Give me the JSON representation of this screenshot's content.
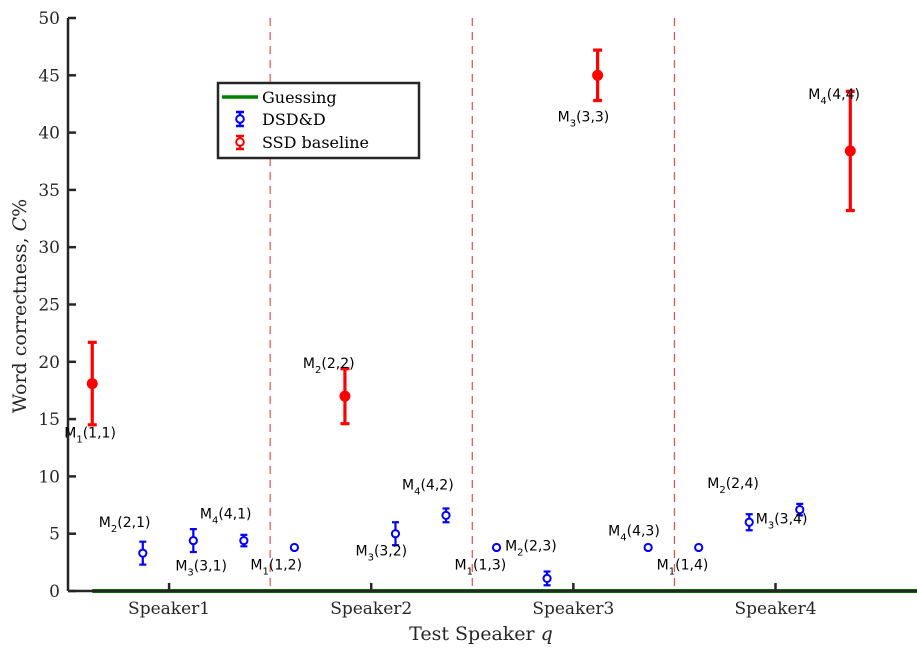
{
  "chart_data": {
    "type": "scatter",
    "xlabel_prefix": "Test Speaker",
    "xlabel_var": "q",
    "ylabel_prefix": "Word correctness,",
    "ylabel_var": "C",
    "ylabel_unit": "%",
    "ylim": [
      0,
      50
    ],
    "yticks": [
      0,
      5,
      10,
      15,
      20,
      25,
      30,
      35,
      40,
      45,
      50
    ],
    "categories": [
      "Speaker1",
      "Speaker2",
      "Speaker3",
      "Speaker4"
    ],
    "legend": {
      "position": "upper-left",
      "entries": [
        {
          "label": "Guessing",
          "color": "#008000",
          "marker": "line"
        },
        {
          "label": "DSD&D",
          "color": "#0000ff",
          "marker": "errorbar-open"
        },
        {
          "label": "SSD baseline",
          "color": "#ff0000",
          "marker": "errorbar-filled"
        }
      ]
    },
    "guessing": {
      "name": "Guessing",
      "color": "#008000",
      "value": 0
    },
    "points": [
      {
        "series": "SSD baseline",
        "x": 0.62,
        "y": 18.1,
        "err": 3.6,
        "label_main": "M",
        "label_sub": "1",
        "label_tail": "(1,1)"
      },
      {
        "series": "DSD&D",
        "x": 0.87,
        "y": 3.3,
        "err": 1.0,
        "label_main": "M",
        "label_sub": "2",
        "label_tail": "(2,1)"
      },
      {
        "series": "DSD&D",
        "x": 1.12,
        "y": 4.4,
        "err": 1.0,
        "label_main": "M",
        "label_sub": "3",
        "label_tail": "(3,1)"
      },
      {
        "series": "DSD&D",
        "x": 1.37,
        "y": 4.4,
        "err": 0.5,
        "label_main": "M",
        "label_sub": "4",
        "label_tail": "(4,1)"
      },
      {
        "series": "DSD&D",
        "x": 1.62,
        "y": 3.8,
        "err": 0.15,
        "label_main": "M",
        "label_sub": "1",
        "label_tail": "(1,2)"
      },
      {
        "series": "SSD baseline",
        "x": 1.87,
        "y": 17.0,
        "err": 2.4,
        "label_main": "M",
        "label_sub": "2",
        "label_tail": "(2,2)"
      },
      {
        "series": "DSD&D",
        "x": 2.12,
        "y": 5.0,
        "err": 1.0,
        "label_main": "M",
        "label_sub": "3",
        "label_tail": "(3,2)"
      },
      {
        "series": "DSD&D",
        "x": 2.37,
        "y": 6.6,
        "err": 0.6,
        "label_main": "M",
        "label_sub": "4",
        "label_tail": "(4,2)"
      },
      {
        "series": "DSD&D",
        "x": 2.62,
        "y": 3.8,
        "err": 0.15,
        "label_main": "M",
        "label_sub": "1",
        "label_tail": "(1,3)"
      },
      {
        "series": "DSD&D",
        "x": 2.87,
        "y": 1.1,
        "err": 0.6,
        "label_main": "M",
        "label_sub": "2",
        "label_tail": "(2,3)"
      },
      {
        "series": "SSD baseline",
        "x": 3.12,
        "y": 45.0,
        "err": 2.2,
        "label_main": "M",
        "label_sub": "3",
        "label_tail": "(3,3)"
      },
      {
        "series": "DSD&D",
        "x": 3.37,
        "y": 3.8,
        "err": 0.15,
        "label_main": "M",
        "label_sub": "4",
        "label_tail": "(4,3)"
      },
      {
        "series": "DSD&D",
        "x": 3.62,
        "y": 3.8,
        "err": 0.15,
        "label_main": "M",
        "label_sub": "1",
        "label_tail": "(1,4)"
      },
      {
        "series": "DSD&D",
        "x": 3.87,
        "y": 6.0,
        "err": 0.7,
        "label_main": "M",
        "label_sub": "2",
        "label_tail": "(2,4)"
      },
      {
        "series": "DSD&D",
        "x": 4.12,
        "y": 7.1,
        "err": 0.5,
        "label_main": "M",
        "label_sub": "3",
        "label_tail": "(3,4)"
      },
      {
        "series": "SSD baseline",
        "x": 4.37,
        "y": 38.4,
        "err": 5.2,
        "label_main": "M",
        "label_sub": "4",
        "label_tail": "(4,4)"
      }
    ],
    "separators": [
      1.5,
      2.5,
      3.5
    ],
    "colors": {
      "dsd": "#0000ff",
      "ssd": "#ff0000",
      "guess": "#008000",
      "separator": "#e05050",
      "axis": "#262626"
    }
  }
}
